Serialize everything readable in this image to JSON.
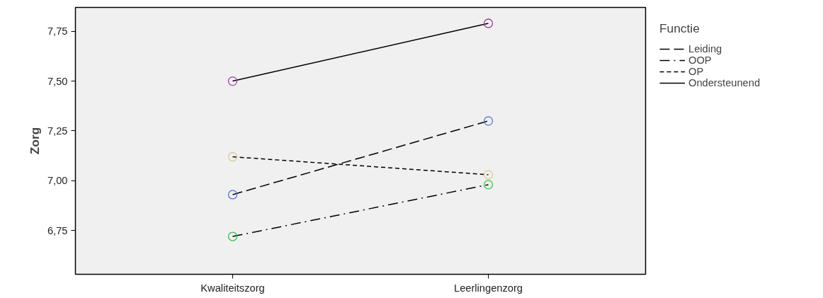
{
  "chart_data": {
    "type": "line",
    "ylabel": "Zorg",
    "legend_title": "Functie",
    "categories": [
      "Kwaliteitszorg",
      "Leerlingenzorg"
    ],
    "series": [
      {
        "name": "Leiding",
        "color": "#5b6fc9",
        "values": [
          6.93,
          7.3
        ],
        "line_style": "longdash"
      },
      {
        "name": "OOP",
        "color": "#3cbf4c",
        "values": [
          6.72,
          6.98
        ],
        "line_style": "dashdot"
      },
      {
        "name": "OP",
        "color": "#d8cc98",
        "values": [
          7.12,
          7.03
        ],
        "line_style": "dashed"
      },
      {
        "name": "Ondersteunend",
        "color": "#a13da6",
        "values": [
          7.5,
          7.79
        ],
        "line_style": "solid"
      }
    ],
    "ylim": [
      6.53,
      7.87
    ],
    "yticks": [
      {
        "value": 6.75,
        "label": "6,75"
      },
      {
        "value": 7.0,
        "label": "7,00"
      },
      {
        "value": 7.25,
        "label": "7,25"
      },
      {
        "value": 7.5,
        "label": "7,50"
      },
      {
        "value": 7.75,
        "label": "7,75"
      }
    ],
    "grid": false,
    "legend": "right",
    "marker": "circle"
  }
}
